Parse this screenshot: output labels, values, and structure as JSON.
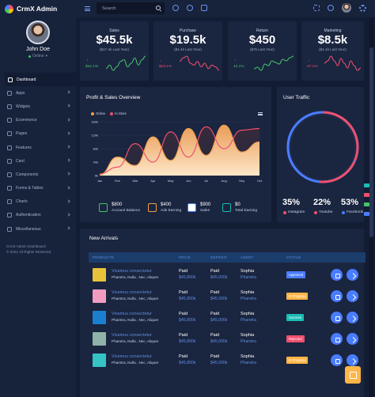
{
  "brand": {
    "name": "CrmX Admin"
  },
  "user": {
    "name": "John Doe",
    "status": "Online"
  },
  "header": {
    "search_placeholder": "Search"
  },
  "nav": {
    "items": [
      {
        "label": "Dashboard",
        "active": true,
        "chevron": false
      },
      {
        "label": "Apps",
        "chevron": true
      },
      {
        "label": "Widgets",
        "chevron": true
      },
      {
        "label": "Ecommerce",
        "chevron": true
      },
      {
        "label": "Pages",
        "chevron": true
      },
      {
        "label": "Features",
        "chevron": true
      },
      {
        "label": "Card",
        "chevron": true
      },
      {
        "label": "Components",
        "chevron": true
      },
      {
        "label": "Forms & Tables",
        "chevron": true
      },
      {
        "label": "Charts",
        "chevron": true
      },
      {
        "label": "Authentication",
        "chevron": true
      },
      {
        "label": "Miscellaneous",
        "chevron": true
      }
    ]
  },
  "footer": {
    "line1": "CrmX Admin Dashboard",
    "line2": "© 2021 All Rights Reserved"
  },
  "stats": [
    {
      "title": "Sales",
      "value": "$45.5k",
      "sub": "($17.4k Last Year)",
      "change": "$42.1%",
      "direction": "up",
      "color": "#45c36a",
      "points": [
        4,
        6,
        3,
        5,
        8,
        9,
        5,
        7,
        10,
        6,
        9,
        11
      ]
    },
    {
      "title": "Purchase",
      "value": "$19.5k",
      "sub": "($1.4k Last Year)",
      "change": "$13.1%",
      "direction": "down",
      "color": "#f0506e",
      "points": [
        6,
        8,
        9,
        5,
        4,
        6,
        3,
        5,
        2,
        4,
        3,
        1
      ]
    },
    {
      "title": "Return",
      "value": "$450",
      "sub": "($7k Last Year)",
      "change": "42.1%",
      "direction": "up",
      "color": "#45c36a",
      "points": [
        4,
        5,
        3,
        7,
        6,
        9,
        8,
        7,
        10,
        9,
        11,
        12
      ]
    },
    {
      "title": "Marketing",
      "value": "$8.5k",
      "sub": "($1.4k Last Year)",
      "change": "27.1%",
      "direction": "down",
      "color": "#f0506e",
      "points": [
        5,
        6,
        8,
        6,
        4,
        7,
        5,
        3,
        6,
        4,
        2,
        3
      ]
    }
  ],
  "profit": {
    "title": "Profit & Sales Overview",
    "legend": [
      {
        "name": "Online",
        "color": "#f0a04e"
      },
      {
        "name": "In-Store",
        "color": "#f0506e"
      }
    ]
  },
  "chart_data": {
    "type": "area",
    "categories": [
      "Jan",
      "Feb",
      "Mar",
      "Apr",
      "May",
      "Jun",
      "Jul",
      "Aug",
      "Sep",
      "Oct"
    ],
    "yticks": [
      "0k",
      "40k",
      "80k",
      "120k",
      "160k"
    ],
    "ylim": [
      0,
      160
    ],
    "grid": true,
    "legend_position": "top-left",
    "series": [
      {
        "name": "Online",
        "color": "#f0a04e",
        "values": [
          2,
          55,
          30,
          115,
          45,
          140,
          60,
          150,
          70,
          100
        ]
      },
      {
        "name": "In-Store",
        "color": "#f0506e",
        "values": [
          5,
          25,
          95,
          40,
          130,
          55,
          145,
          80,
          135,
          140
        ]
      }
    ]
  },
  "summary": [
    {
      "value": "$800",
      "label": "Account Balance",
      "color": "#45c36a"
    },
    {
      "value": "$400",
      "label": "Ads Earning",
      "color": "#f0a04e"
    },
    {
      "value": "$900",
      "label": "Sales",
      "color": "#4a7cff"
    },
    {
      "value": "$0",
      "label": "Total Earning",
      "color": "#1bbcb3"
    }
  ],
  "traffic": {
    "title": "User Traffic",
    "items": [
      {
        "pct": "35%",
        "label": "Instagram",
        "color": "#f0506e",
        "value": 35
      },
      {
        "pct": "22%",
        "label": "Youtube",
        "color": "#f0506e",
        "value": 22
      },
      {
        "pct": "53%",
        "label": "Facebook",
        "color": "#4a7cff",
        "value": 53
      }
    ]
  },
  "arrivals": {
    "title": "New Arrivals",
    "headers": [
      "PRODUCTS",
      "PRICE",
      "DEPOSIT",
      "AGENT",
      "STATUS"
    ],
    "rows": [
      {
        "name": "Vivamus consectetur",
        "desc": "Pharetra, Nulla , Nec, Aliquet",
        "price_status": "Paid",
        "price": "$45,800k",
        "deposit_status": "Paid",
        "deposit": "$45,000k",
        "agent": "Sophia",
        "agent_sub": "Pharetra",
        "status": "Approved",
        "status_color": "#4a7cff",
        "thumb": "#e8c33a"
      },
      {
        "name": "Vivamus consectetur",
        "desc": "Pharetra, Nulla , Nec, Aliquet",
        "price_status": "Paid",
        "price": "$45,800k",
        "deposit_status": "Paid",
        "deposit": "$45,000k",
        "agent": "Sophia",
        "agent_sub": "Pharetra",
        "status": "In Progress",
        "status_color": "#ffb648",
        "thumb": "#f29bc0"
      },
      {
        "name": "Vivamus consectetur",
        "desc": "Pharetra, Nulla , Nec, Aliquet",
        "price_status": "Paid",
        "price": "$45,800k",
        "deposit_status": "Paid",
        "deposit": "$45,000k",
        "agent": "Sophia",
        "agent_sub": "Pharetra",
        "status": "Success",
        "status_color": "#1bbcb3",
        "thumb": "#1b7fd0"
      },
      {
        "name": "Vivamus consectetur",
        "desc": "Pharetra, Nulla , Nec, Aliquet",
        "price_status": "Paid",
        "price": "$45,800k",
        "deposit_status": "Paid",
        "deposit": "$45,000k",
        "agent": "Sophia",
        "agent_sub": "Pharetra",
        "status": "Rejected",
        "status_color": "#f0506e",
        "thumb": "#8fb3a8"
      },
      {
        "name": "Vivamus consectetur",
        "desc": "Pharetra, Nulla , Nec, Aliquet",
        "price_status": "Paid",
        "price": "$45,800k",
        "deposit_status": "Paid",
        "deposit": "$45,000k",
        "agent": "Sophia",
        "agent_sub": "Pharetra",
        "status": "In Progress",
        "status_color": "#ffb648",
        "thumb": "#35c3c3"
      }
    ]
  }
}
